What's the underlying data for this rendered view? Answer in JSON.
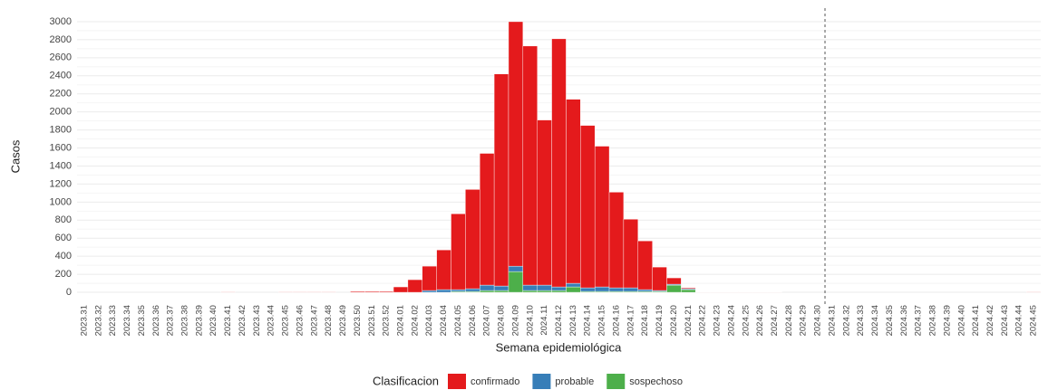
{
  "chart_data": {
    "type": "stacked_bar",
    "ylabel": "Casos",
    "xlabel": "Semana epidemiológica",
    "legend_title": "Clasificacion",
    "legend_position": "bottom",
    "categories": [
      "2023.31",
      "2023.32",
      "2023.33",
      "2023.34",
      "2023.35",
      "2023.36",
      "2023.37",
      "2023.38",
      "2023.39",
      "2023.40",
      "2023.41",
      "2023.42",
      "2023.43",
      "2023.44",
      "2023.45",
      "2023.46",
      "2023.47",
      "2023.48",
      "2023.49",
      "2023.50",
      "2023.51",
      "2023.52",
      "2024.01",
      "2024.02",
      "2024.03",
      "2024.04",
      "2024.05",
      "2024.06",
      "2024.07",
      "2024.08",
      "2024.09",
      "2024.10",
      "2024.11",
      "2024.12",
      "2024.13",
      "2024.14",
      "2024.15",
      "2024.16",
      "2024.17",
      "2024.18",
      "2024.19",
      "2024.20",
      "2024.21",
      "2024.22",
      "2024.23",
      "2024.24",
      "2024.25",
      "2024.26",
      "2024.27",
      "2024.28",
      "2024.29",
      "2024.30",
      "2024.31",
      "2024.32",
      "2024.33",
      "2024.34",
      "2024.35",
      "2024.36",
      "2024.37",
      "2024.38",
      "2024.39",
      "2024.40",
      "2024.41",
      "2024.42",
      "2024.43",
      "2024.44",
      "2024.45"
    ],
    "series": [
      {
        "name": "sospechoso",
        "color": "#4daf4a",
        "values": [
          0,
          0,
          0,
          0,
          0,
          0,
          0,
          0,
          0,
          0,
          0,
          0,
          0,
          0,
          0,
          0,
          0,
          0,
          0,
          0,
          0,
          0,
          0,
          0,
          0,
          0,
          10,
          10,
          20,
          20,
          230,
          20,
          20,
          20,
          60,
          10,
          10,
          10,
          10,
          10,
          10,
          80,
          30,
          0,
          0,
          0,
          0,
          0,
          0,
          0,
          0,
          0,
          0,
          0,
          0,
          0,
          0,
          0,
          0,
          0,
          0,
          0,
          0,
          0,
          0,
          0,
          0
        ]
      },
      {
        "name": "probable",
        "color": "#377eb8",
        "values": [
          0,
          0,
          0,
          0,
          0,
          0,
          0,
          0,
          0,
          0,
          0,
          0,
          0,
          0,
          0,
          0,
          0,
          0,
          0,
          0,
          0,
          0,
          0,
          0,
          20,
          30,
          20,
          30,
          60,
          50,
          60,
          60,
          60,
          40,
          40,
          40,
          50,
          40,
          40,
          20,
          10,
          10,
          10,
          0,
          0,
          0,
          0,
          0,
          0,
          0,
          0,
          0,
          0,
          0,
          0,
          0,
          0,
          0,
          0,
          0,
          0,
          0,
          0,
          0,
          0,
          0,
          0
        ]
      },
      {
        "name": "confirmado",
        "color": "#e41a1c",
        "values": [
          0,
          0,
          0,
          0,
          0,
          0,
          0,
          0,
          0,
          0,
          5,
          0,
          0,
          0,
          5,
          5,
          5,
          5,
          0,
          10,
          10,
          10,
          60,
          140,
          270,
          440,
          840,
          1100,
          1460,
          2350,
          2710,
          2650,
          1830,
          2750,
          2040,
          1800,
          1560,
          1060,
          760,
          540,
          260,
          70,
          10,
          3,
          3,
          3,
          3,
          3,
          3,
          0,
          0,
          0,
          0,
          0,
          0,
          0,
          0,
          0,
          0,
          0,
          0,
          0,
          0,
          0,
          0,
          0,
          5
        ]
      }
    ],
    "legend_order": [
      "confirmado",
      "probable",
      "sospechoso"
    ],
    "ylim": [
      -150,
      3150
    ],
    "yticks": [
      0,
      200,
      400,
      600,
      800,
      1000,
      1200,
      1400,
      1600,
      1800,
      2000,
      2200,
      2400,
      2600,
      2800,
      3000
    ],
    "grid": true,
    "vline": {
      "after": "2024.30",
      "style": "dashed"
    }
  }
}
